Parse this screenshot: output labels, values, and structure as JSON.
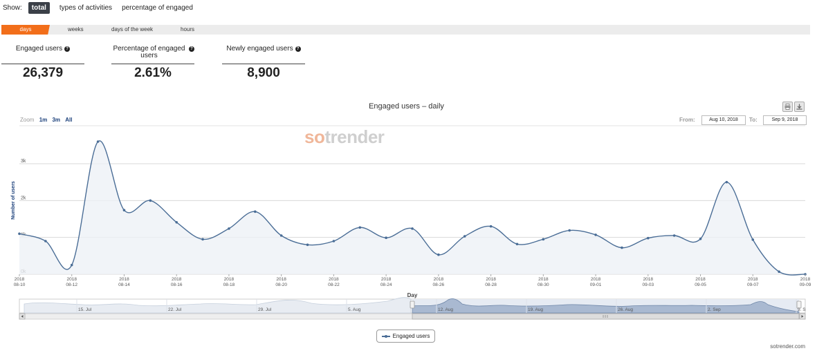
{
  "show": {
    "label": "Show:",
    "options": [
      "total",
      "types of activities",
      "percentage of engaged"
    ],
    "active_index": 0
  },
  "tabs": [
    "days",
    "weeks",
    "days of the week",
    "hours"
  ],
  "stats": [
    {
      "title": "Engaged users",
      "value": "26,379"
    },
    {
      "title": "Percentage of engaged users",
      "value": "2.61%"
    },
    {
      "title": "Newly engaged users",
      "value": "8,900"
    }
  ],
  "help_glyph": "?",
  "zoom": {
    "label": "Zoom",
    "options": [
      "1m",
      "3m",
      "All"
    ]
  },
  "range": {
    "from_label": "From:",
    "from": "Aug 10, 2018",
    "to_label": "To:",
    "to": "Sep 9, 2018"
  },
  "icons": {
    "print": "printer-icon",
    "export": "download-icon"
  },
  "watermark": {
    "a": "so",
    "b": "trender"
  },
  "colors": {
    "accent": "#f26e1a",
    "series": "#4a6d96",
    "active_option": "#3b4048"
  },
  "chart_data": {
    "type": "area",
    "title": "Engaged users – daily",
    "ylabel": "Number of users",
    "xlabel": "Day",
    "ylim": [
      0,
      3500
    ],
    "yticks": [
      "0k",
      "1k",
      "2k",
      "3k"
    ],
    "grid": true,
    "legend_position": "bottom-center",
    "x_tick_labels": [
      "2018 08-10",
      "2018 08-12",
      "2018 08-14",
      "2018 08-16",
      "2018 08-18",
      "2018 08-20",
      "2018 08-22",
      "2018 08-24",
      "2018 08-26",
      "2018 08-28",
      "2018 08-30",
      "2018 09-01",
      "2018 09-03",
      "2018 09-05",
      "2018 09-07",
      "2018 09-09"
    ],
    "series": [
      {
        "name": "Engaged users",
        "x": [
          "2018-08-10",
          "2018-08-11",
          "2018-08-12",
          "2018-08-13",
          "2018-08-14",
          "2018-08-15",
          "2018-08-16",
          "2018-08-17",
          "2018-08-18",
          "2018-08-19",
          "2018-08-20",
          "2018-08-21",
          "2018-08-22",
          "2018-08-23",
          "2018-08-24",
          "2018-08-25",
          "2018-08-26",
          "2018-08-27",
          "2018-08-28",
          "2018-08-29",
          "2018-08-30",
          "2018-08-31",
          "2018-09-01",
          "2018-09-02",
          "2018-09-03",
          "2018-09-04",
          "2018-09-05",
          "2018-09-06",
          "2018-09-07",
          "2018-09-08",
          "2018-09-09"
        ],
        "values": [
          1100,
          900,
          250,
          3600,
          1740,
          2000,
          1410,
          950,
          1240,
          1700,
          1050,
          800,
          900,
          1270,
          990,
          1240,
          530,
          1030,
          1300,
          820,
          950,
          1190,
          1070,
          720,
          980,
          1050,
          960,
          2500,
          940,
          70,
          0
        ]
      }
    ],
    "navigator": {
      "date_labels": [
        "15. Jul",
        "22. Jul",
        "29. Jul",
        "5. Aug",
        "12. Aug",
        "19. Aug",
        "26. Aug",
        "2. Sep",
        "9. S"
      ]
    }
  },
  "credit": "sotrender.com"
}
